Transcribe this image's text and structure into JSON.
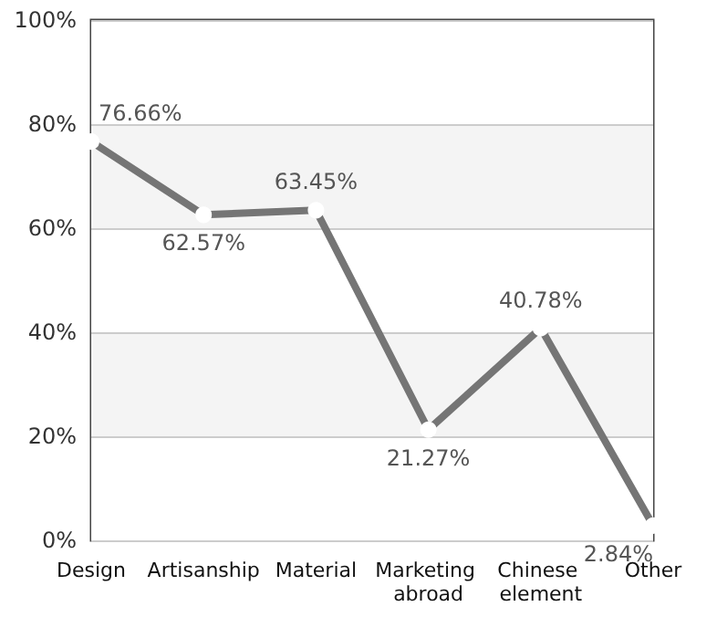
{
  "chart_data": {
    "type": "line",
    "categories": [
      "Design",
      "Artisanship",
      "Material",
      "Marketing abroad",
      "Chinese element",
      "Other"
    ],
    "series": [
      {
        "color": "#757575",
        "values": [
          76.66,
          62.57,
          63.45,
          21.27,
          40.78,
          2.84
        ],
        "value_labels": [
          "76.66%",
          "62.57%",
          "63.45%",
          "21.27%",
          "40.78%",
          "2.84%"
        ]
      }
    ],
    "ylim": [
      0,
      100
    ],
    "yticks": [
      {
        "value": 0,
        "label": "0%"
      },
      {
        "value": 20,
        "label": "20%"
      },
      {
        "value": 40,
        "label": "40%"
      },
      {
        "value": 60,
        "label": "60%"
      },
      {
        "value": 80,
        "label": "80%"
      },
      {
        "value": 100,
        "label": "100%"
      }
    ],
    "grid": "y",
    "marker": "circle",
    "line_style": "solid"
  }
}
